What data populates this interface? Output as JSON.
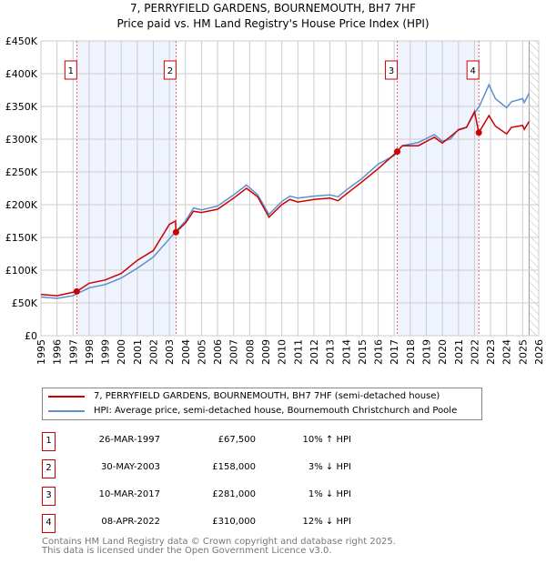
{
  "chart_data": {
    "type": "line",
    "title": "7, PERRYFIELD GARDENS, BOURNEMOUTH, BH7 7HF",
    "subtitle": "Price paid vs. HM Land Registry's House Price Index (HPI)",
    "xlim": [
      1995,
      2026
    ],
    "ylim": [
      0,
      450000
    ],
    "yticks": [
      0,
      50000,
      100000,
      150000,
      200000,
      250000,
      300000,
      350000,
      400000,
      450000
    ],
    "ytick_labels": [
      "£0",
      "£50K",
      "£100K",
      "£150K",
      "£200K",
      "£250K",
      "£300K",
      "£350K",
      "£400K",
      "£450K"
    ],
    "xticks": [
      1995,
      1996,
      1997,
      1998,
      1999,
      2000,
      2001,
      2002,
      2003,
      2004,
      2005,
      2006,
      2007,
      2008,
      2009,
      2010,
      2011,
      2012,
      2013,
      2014,
      2015,
      2016,
      2017,
      2018,
      2019,
      2020,
      2021,
      2022,
      2023,
      2024,
      2025,
      2026
    ],
    "grid": true,
    "forecast_hatch_from": 2025.4,
    "shaded_ranges": [
      [
        1997.23,
        2003.41
      ],
      [
        2017.19,
        2022.27
      ]
    ],
    "series": [
      {
        "name": "7, PERRYFIELD GARDENS, BOURNEMOUTH, BH7 7HF (semi-detached house)",
        "color": "#cc0000",
        "x": [
          1995,
          1996,
          1997.23,
          1998,
          1999,
          2000,
          2001,
          2002,
          2003,
          2003.38,
          2003.41,
          2004,
          2004.5,
          2005,
          2006,
          2007,
          2007.8,
          2008.5,
          2009.2,
          2010,
          2010.5,
          2011,
          2012,
          2013,
          2013.5,
          2014,
          2015,
          2016,
          2017.19,
          2017.5,
          2018.5,
          2019.5,
          2020,
          2021,
          2021.5,
          2022,
          2022.27,
          2022.9,
          2023.3,
          2024,
          2024.3,
          2025,
          2025.1,
          2025.4
        ],
        "y": [
          63000,
          61000,
          67500,
          80000,
          85000,
          95000,
          115000,
          130000,
          170000,
          175000,
          158000,
          172000,
          190000,
          188000,
          193000,
          210000,
          225000,
          212000,
          181000,
          200000,
          208000,
          204000,
          208000,
          210000,
          206000,
          216000,
          235000,
          255000,
          281000,
          290000,
          290000,
          303000,
          294000,
          314000,
          318000,
          342000,
          310000,
          336000,
          320000,
          308000,
          318000,
          321000,
          315000,
          327000
        ]
      },
      {
        "name": "HPI: Average price, semi-detached house, Bournemouth Christchurch and Poole",
        "color": "#5b8fd0",
        "x": [
          1995,
          1996,
          1997,
          1998,
          1999,
          2000,
          2001,
          2002,
          2003,
          2003.5,
          2004,
          2004.5,
          2005,
          2006,
          2007,
          2007.8,
          2008.5,
          2009.2,
          2010,
          2010.5,
          2011,
          2012,
          2013,
          2013.5,
          2014,
          2015,
          2016,
          2017,
          2017.5,
          2018.5,
          2019.5,
          2020,
          2020.5,
          2021,
          2021.5,
          2022,
          2022.3,
          2022.9,
          2023.3,
          2024,
          2024.3,
          2025,
          2025.1,
          2025.4
        ],
        "y": [
          59000,
          57000,
          61000,
          73000,
          78000,
          88000,
          103000,
          120000,
          148000,
          162000,
          175000,
          195000,
          192000,
          198000,
          215000,
          230000,
          215000,
          185000,
          205000,
          213000,
          210000,
          213000,
          215000,
          212000,
          222000,
          240000,
          262000,
          275000,
          290000,
          295000,
          307000,
          297000,
          300000,
          315000,
          318000,
          340000,
          350000,
          383000,
          362000,
          348000,
          357000,
          362000,
          356000,
          370000
        ]
      }
    ],
    "sales": [
      {
        "id": "1",
        "x": 1997.23,
        "y": 67500,
        "date": "26-MAR-1997",
        "price": "£67,500",
        "hpi": "10% ↑ HPI"
      },
      {
        "id": "2",
        "x": 2003.41,
        "y": 158000,
        "date": "30-MAY-2003",
        "price": "£158,000",
        "hpi": "3% ↓ HPI"
      },
      {
        "id": "3",
        "x": 2017.19,
        "y": 281000,
        "date": "10-MAR-2017",
        "price": "£281,000",
        "hpi": "1% ↓ HPI"
      },
      {
        "id": "4",
        "x": 2022.27,
        "y": 310000,
        "date": "08-APR-2022",
        "price": "£310,000",
        "hpi": "12% ↓ HPI"
      }
    ]
  },
  "footer": {
    "line1": "Contains HM Land Registry data © Crown copyright and database right 2025.",
    "line2": "This data is licensed under the Open Government Licence v3.0."
  }
}
